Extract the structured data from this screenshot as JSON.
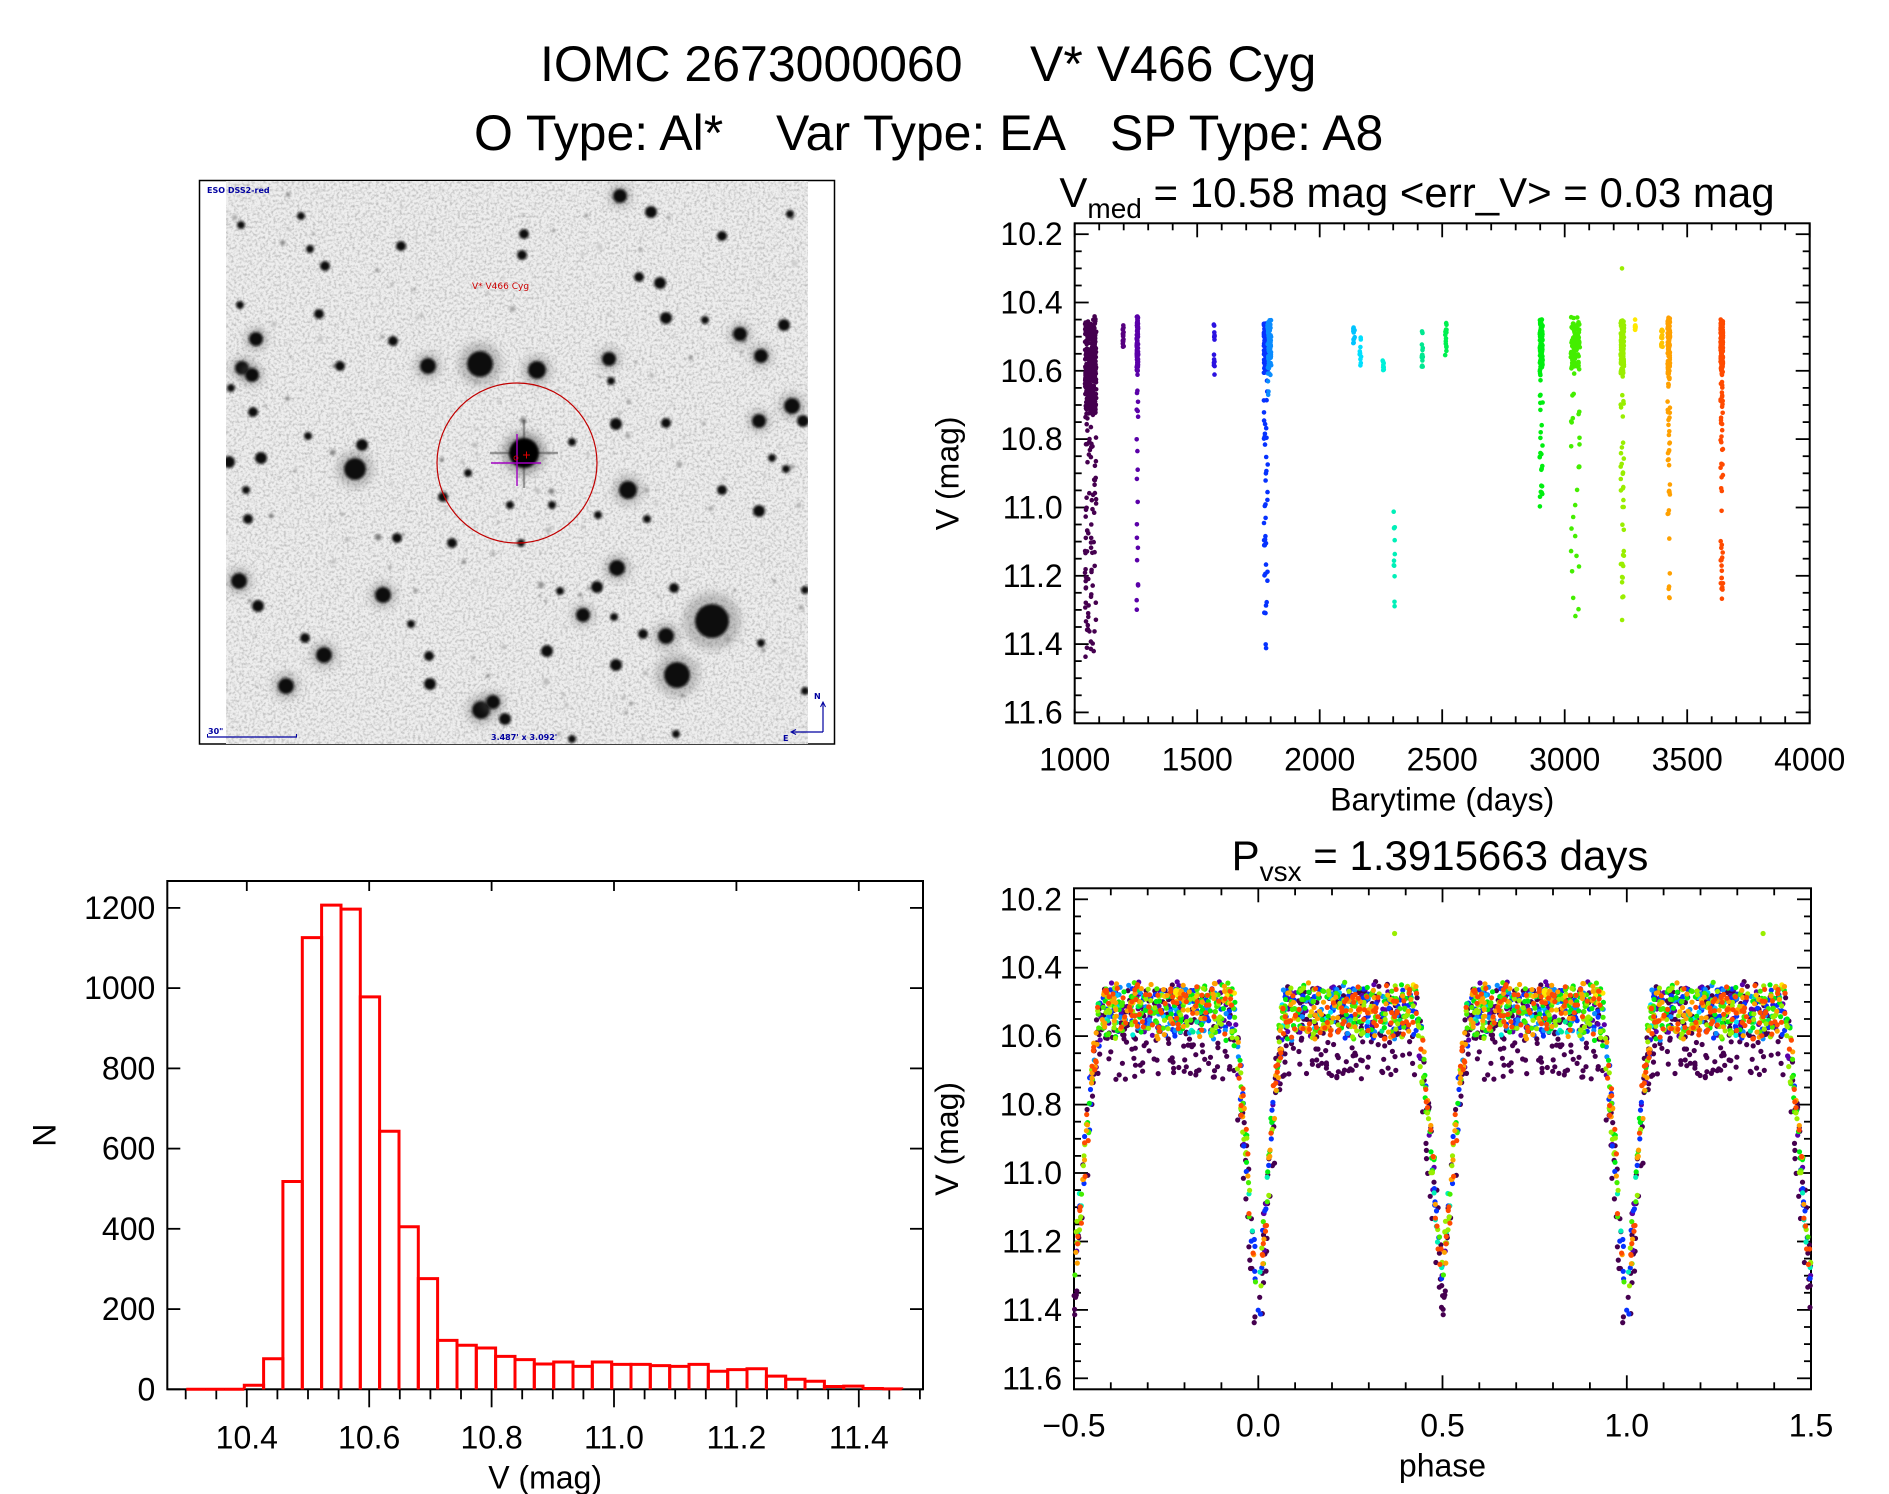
{
  "header": {
    "object_id": "IOMC 2673000060",
    "star_name": "V* V466 Cyg",
    "o_type": "O Type: Al*",
    "var_type": "Var Type: EA",
    "sp_type": "SP Type: A8"
  },
  "finder_chart": {
    "survey_label": "ESO DSS2-red",
    "target_label": "V* V466 Cyg",
    "scale_label": "30\"",
    "field_size_label": "3.487' x 3.092'",
    "north_label": "N",
    "east_label": "E",
    "colors": {
      "overlay_text": "#0000a0",
      "target_circle": "#c00000",
      "crosshair": "#a000c0",
      "background": "#eeeeee"
    }
  },
  "chart_data": [
    {
      "id": "light-curve",
      "type": "scatter",
      "title": {
        "symbol": "V",
        "subscript": "med",
        "text": " = 10.58 mag <err_V> = 0.03 mag"
      },
      "median_V_mag": 10.58,
      "mean_err_V_mag": 0.03,
      "xlabel": "Barytime (days)",
      "ylabel": "V (mag)",
      "xlim": [
        1000,
        4000
      ],
      "ylim": [
        10.168,
        11.632
      ],
      "y_inverted": true,
      "grid": false,
      "x_ticks": {
        "values": [
          1000,
          1500,
          2000,
          2500,
          3000,
          3500,
          4000
        ],
        "labels": [
          "1000",
          "1500",
          "2000",
          "2500",
          "3000",
          "3500",
          "4000"
        ],
        "minor_step": 100
      },
      "y_ticks": {
        "values": [
          10.2,
          10.4,
          10.6,
          10.8,
          11.0,
          11.2,
          11.4,
          11.6
        ],
        "labels": [
          "10.2",
          "10.4",
          "10.6",
          "10.8",
          "11.0",
          "11.2",
          "11.4",
          "11.6"
        ],
        "minor_step": 0.05
      },
      "seasons": [
        {
          "color": "#45004f",
          "t_range": [
            1042,
            1088
          ],
          "v_range": [
            10.4,
            11.45
          ],
          "n": 420,
          "base": [
            10.45,
            10.72
          ]
        },
        {
          "color": "#56007f",
          "t_range": [
            1196,
            1200
          ],
          "v_range": [
            10.46,
            10.53
          ],
          "n": 16
        },
        {
          "color": "#5a00a8",
          "t_range": [
            1253,
            1259
          ],
          "v_range": [
            10.4,
            11.3
          ],
          "n": 110
        },
        {
          "color": "#2b12e0",
          "t_range": [
            1567,
            1571
          ],
          "v_range": [
            10.46,
            10.64
          ],
          "n": 14
        },
        {
          "color": "#0632ff",
          "t_range": [
            1772,
            1788
          ],
          "v_range": [
            10.46,
            11.46
          ],
          "n": 170
        },
        {
          "color": "#0a8cff",
          "t_range": [
            1787,
            1802
          ],
          "v_range": [
            10.45,
            10.72
          ],
          "n": 70
        },
        {
          "color": "#00c4ff",
          "t_range": [
            2137,
            2143
          ],
          "v_range": [
            10.47,
            10.52
          ],
          "n": 10
        },
        {
          "color": "#00e0ff",
          "t_range": [
            2163,
            2169
          ],
          "v_range": [
            10.5,
            10.6
          ],
          "n": 10
        },
        {
          "color": "#00f0d8",
          "t_range": [
            2256,
            2262
          ],
          "v_range": [
            10.57,
            10.71
          ],
          "n": 9
        },
        {
          "color": "#00f0b8",
          "t_range": [
            2301,
            2307
          ],
          "v_range": [
            11.0,
            11.29
          ],
          "n": 12
        },
        {
          "color": "#00e890",
          "t_range": [
            2415,
            2421
          ],
          "v_range": [
            10.48,
            10.62
          ],
          "n": 14
        },
        {
          "color": "#00f050",
          "t_range": [
            2512,
            2518
          ],
          "v_range": [
            10.46,
            10.56
          ],
          "n": 14
        },
        {
          "color": "#00ee10",
          "t_range": [
            2898,
            2910
          ],
          "v_range": [
            10.44,
            11.0
          ],
          "n": 130
        },
        {
          "color": "#44ee00",
          "t_range": [
            3025,
            3062
          ],
          "v_range": [
            10.4,
            11.34
          ],
          "n": 120
        },
        {
          "color": "#99ee00",
          "t_range": [
            3228,
            3242
          ],
          "v_range": [
            10.45,
            11.35
          ],
          "n": 150
        },
        {
          "color": "#ffe800",
          "t_range": [
            3285,
            3290
          ],
          "v_range": [
            10.42,
            10.48
          ],
          "n": 8
        },
        {
          "color": "#ffc400",
          "t_range": [
            3394,
            3400
          ],
          "v_range": [
            10.46,
            10.53
          ],
          "n": 14
        },
        {
          "color": "#ffa000",
          "t_range": [
            3420,
            3430
          ],
          "v_range": [
            10.42,
            11.33
          ],
          "n": 140
        },
        {
          "color": "#ff4a00",
          "t_range": [
            3636,
            3646
          ],
          "v_range": [
            10.43,
            11.27
          ],
          "n": 200
        }
      ],
      "outliers": [
        {
          "t": 3234,
          "v": 10.3,
          "phase": 0.37,
          "color": "#99ee00"
        }
      ]
    },
    {
      "id": "phased-light-curve",
      "type": "scatter",
      "title": {
        "symbol": "P",
        "subscript": "vsx",
        "text": " = 1.3915663 days"
      },
      "period_days": 1.3915663,
      "xlabel": "phase",
      "ylabel": "V (mag)",
      "xlim": [
        -0.5,
        1.5
      ],
      "ylim": [
        10.168,
        11.632
      ],
      "y_inverted": true,
      "grid": false,
      "x_ticks": {
        "values": [
          -0.5,
          0.0,
          0.5,
          1.0,
          1.5
        ],
        "labels": [
          "−0.5",
          "0.0",
          "0.5",
          "1.0",
          "1.5"
        ],
        "minor_step": 0.1
      },
      "y_ticks": {
        "values": [
          10.2,
          10.4,
          10.6,
          10.8,
          11.0,
          11.2,
          11.4,
          11.6
        ],
        "labels": [
          "10.2",
          "10.4",
          "10.6",
          "10.8",
          "11.0",
          "11.2",
          "11.4",
          "11.6"
        ],
        "minor_step": 0.05
      },
      "model": {
        "primary_phase": 0.0,
        "primary_min_mag": 11.43,
        "secondary_phase": 0.5,
        "secondary_min_mag": 11.32,
        "eclipse_halfwidth_phase": 0.07,
        "out_of_eclipse_mag": [
          10.45,
          10.6
        ]
      }
    },
    {
      "id": "magnitude-histogram",
      "type": "bar",
      "style": "outline-histogram",
      "xlabel": "V (mag)",
      "ylabel": "N",
      "xlim": [
        10.27,
        11.505
      ],
      "ylim": [
        0,
        1267
      ],
      "grid": false,
      "color": "#ff0000",
      "bin_start": 10.301,
      "bin_width": 0.0316,
      "counts": [
        0,
        0,
        0,
        10,
        76,
        518,
        1126,
        1207,
        1197,
        978,
        643,
        405,
        276,
        122,
        110,
        103,
        82,
        74,
        63,
        68,
        57,
        68,
        62,
        62,
        59,
        57,
        62,
        45,
        49,
        51,
        33,
        25,
        20,
        7,
        8,
        2,
        1
      ],
      "x_ticks": {
        "values": [
          10.4,
          10.6,
          10.8,
          11.0,
          11.2,
          11.4
        ],
        "labels": [
          "10.4",
          "10.6",
          "10.8",
          "11.0",
          "11.2",
          "11.4"
        ],
        "minor_step": 0.05
      },
      "y_ticks": {
        "values": [
          0,
          200,
          400,
          600,
          800,
          1000,
          1200
        ],
        "labels": [
          "0",
          "200",
          "400",
          "600",
          "800",
          "1000",
          "1200"
        ]
      }
    }
  ]
}
